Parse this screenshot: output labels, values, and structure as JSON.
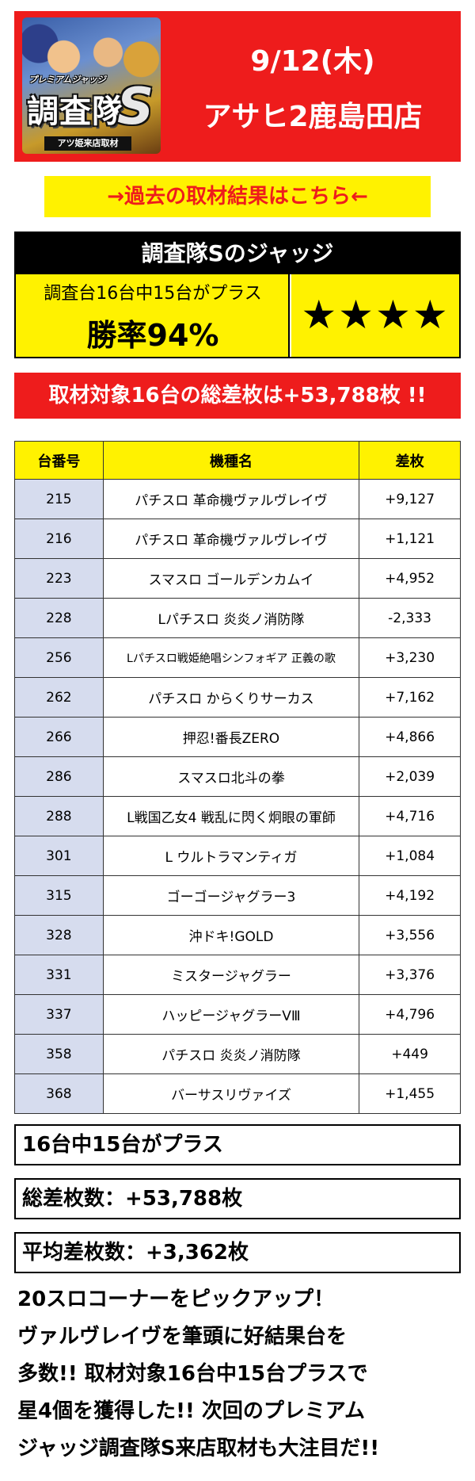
{
  "header": {
    "logo": {
      "sub_title": "プレミアムジャッジ",
      "main_title": "調査隊",
      "big_letter": "S",
      "tag": "アツ姫来店取材"
    },
    "date": "9/12(木)",
    "store": "アサヒ2鹿島田店"
  },
  "past_link_label": "→過去の取材結果はこちら←",
  "judge": {
    "title": "調査隊Sのジャッジ",
    "description": "調査台16台中15台がプラス",
    "win_rate": "勝率94%",
    "stars": "★★★★",
    "star_count": 4
  },
  "total_banner": "取材対象16台の総差枚は+53,788枚 !!",
  "table": {
    "headers": [
      "台番号",
      "機種名",
      "差枚"
    ],
    "rows": [
      {
        "no": "215",
        "name": "パチスロ 革命機ヴァルヴレイヴ",
        "diff": "+9,127"
      },
      {
        "no": "216",
        "name": "パチスロ 革命機ヴァルヴレイヴ",
        "diff": "+1,121"
      },
      {
        "no": "223",
        "name": "スマスロ ゴールデンカムイ",
        "diff": "+4,952"
      },
      {
        "no": "228",
        "name": "Lパチスロ 炎炎ノ消防隊",
        "diff": "-2,333"
      },
      {
        "no": "256",
        "name": "Lパチスロ戦姫絶唱シンフォギア 正義の歌",
        "diff": "+3,230"
      },
      {
        "no": "262",
        "name": "パチスロ からくりサーカス",
        "diff": "+7,162"
      },
      {
        "no": "266",
        "name": "押忍!番長ZERO",
        "diff": "+4,866"
      },
      {
        "no": "286",
        "name": "スマスロ北斗の拳",
        "diff": "+2,039"
      },
      {
        "no": "288",
        "name": "L戦国乙女4 戦乱に閃く炯眼の軍師",
        "diff": "+4,716"
      },
      {
        "no": "301",
        "name": "L ウルトラマンティガ",
        "diff": "+1,084"
      },
      {
        "no": "315",
        "name": "ゴーゴージャグラー3",
        "diff": "+4,192"
      },
      {
        "no": "328",
        "name": "沖ドキ!GOLD",
        "diff": "+3,556"
      },
      {
        "no": "331",
        "name": "ミスタージャグラー",
        "diff": "+3,376"
      },
      {
        "no": "337",
        "name": "ハッピージャグラーVⅢ",
        "diff": "+4,796"
      },
      {
        "no": "358",
        "name": "パチスロ 炎炎ノ消防隊",
        "diff": "+449"
      },
      {
        "no": "368",
        "name": "バーサスリヴァイズ",
        "diff": "+1,455"
      }
    ]
  },
  "stats": {
    "plus_count": "16台中15台がプラス",
    "total_diff": "総差枚数：+53,788枚",
    "avg_diff": "平均差枚数：+3,362枚"
  },
  "summary": [
    "20スロコーナーをピックアップ！",
    "ヴァルヴレイヴを筆頭に好結果台を",
    "多数!! 取材対象16台中15台プラスで",
    "星4個を獲得した!! 次回のプレミアム",
    "ジャッジ調査隊S来店取材も大注目だ!!"
  ],
  "colors": {
    "brand_red": "#ee1c1c",
    "highlight_yellow": "#fff200",
    "table_number_bg": "#d6dcee"
  }
}
